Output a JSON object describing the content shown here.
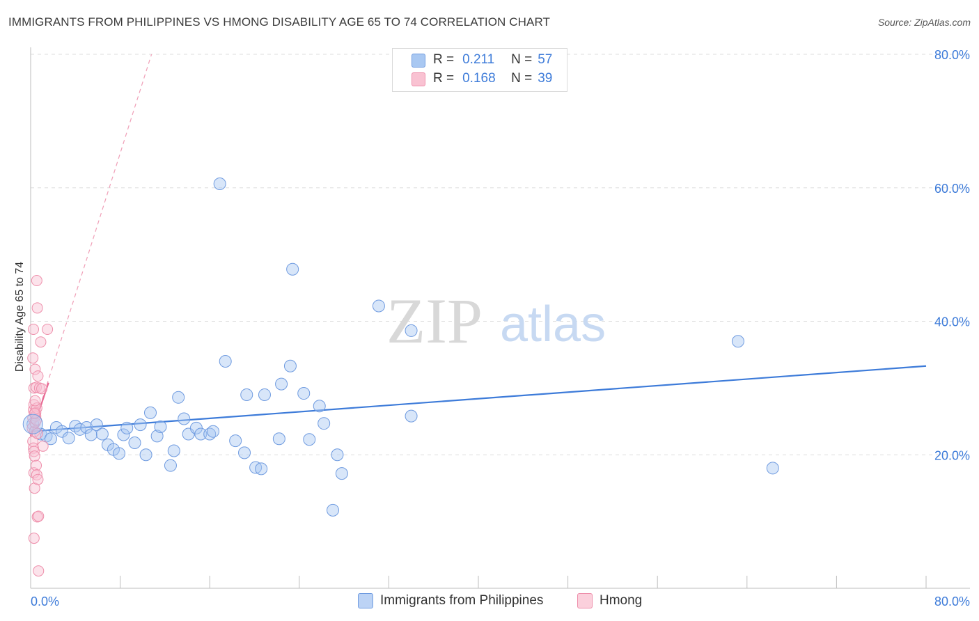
{
  "title": "IMMIGRANTS FROM PHILIPPINES VS HMONG DISABILITY AGE 65 TO 74 CORRELATION CHART",
  "source": "Source: ZipAtlas.com",
  "watermark": {
    "zip": "ZIP",
    "atlas": "atlas"
  },
  "legend": {
    "r_label": "R =",
    "n_label": "N =",
    "rows": [
      {
        "r": "0.211",
        "n": "57",
        "color": "#a9c8f2",
        "border": "#6f9be0"
      },
      {
        "r": "0.168",
        "n": "39",
        "color": "#f9c2d2",
        "border": "#ee8fab"
      }
    ]
  },
  "bottom_legend": [
    {
      "label": "Immigrants from Philippines",
      "color": "#bcd3f5",
      "border": "#6f9be0"
    },
    {
      "label": "Hmong",
      "color": "#fbd0dc",
      "border": "#ee8fab"
    }
  ],
  "chart_data": {
    "type": "scatter",
    "title": "IMMIGRANTS FROM PHILIPPINES VS HMONG DISABILITY AGE 65 TO 74 CORRELATION CHART",
    "xlabel": "",
    "ylabel": "Disability Age 65 to 74",
    "xlim": [
      0,
      80
    ],
    "ylim": [
      0,
      80
    ],
    "x_tick_labels": [
      "0.0%",
      "80.0%"
    ],
    "y_tick_labels": [
      "20.0%",
      "40.0%",
      "60.0%",
      "80.0%"
    ],
    "y_ticks": [
      20,
      40,
      60,
      80
    ],
    "grid": true,
    "legend_position": "top-center",
    "colors": {
      "philippines": "#3d7bd9",
      "hmong": "#e86a94"
    },
    "series": [
      {
        "name": "Immigrants from Philippines",
        "points": [
          [
            0.2,
            24.6
          ],
          [
            0.9,
            23.1
          ],
          [
            1.4,
            22.8
          ],
          [
            1.8,
            22.4
          ],
          [
            2.3,
            24.1
          ],
          [
            2.8,
            23.5
          ],
          [
            3.4,
            22.5
          ],
          [
            4.0,
            24.3
          ],
          [
            4.4,
            23.8
          ],
          [
            5.0,
            24.1
          ],
          [
            5.4,
            23.0
          ],
          [
            5.9,
            24.5
          ],
          [
            6.4,
            23.1
          ],
          [
            6.9,
            21.5
          ],
          [
            7.4,
            20.8
          ],
          [
            7.9,
            20.2
          ],
          [
            8.3,
            23.0
          ],
          [
            8.6,
            24.0
          ],
          [
            9.3,
            21.8
          ],
          [
            9.8,
            24.5
          ],
          [
            10.3,
            20.0
          ],
          [
            10.7,
            26.3
          ],
          [
            11.3,
            22.8
          ],
          [
            11.6,
            24.2
          ],
          [
            12.5,
            18.4
          ],
          [
            12.8,
            20.6
          ],
          [
            13.2,
            28.6
          ],
          [
            13.7,
            25.4
          ],
          [
            14.1,
            23.1
          ],
          [
            14.8,
            24.0
          ],
          [
            15.2,
            23.1
          ],
          [
            16.0,
            23.1
          ],
          [
            16.3,
            23.5
          ],
          [
            16.9,
            60.6
          ],
          [
            17.4,
            34.0
          ],
          [
            18.3,
            22.1
          ],
          [
            19.1,
            20.3
          ],
          [
            19.3,
            29.0
          ],
          [
            20.1,
            18.1
          ],
          [
            20.6,
            17.9
          ],
          [
            20.9,
            29.0
          ],
          [
            22.2,
            22.4
          ],
          [
            22.4,
            30.6
          ],
          [
            23.2,
            33.3
          ],
          [
            23.4,
            47.8
          ],
          [
            24.4,
            29.2
          ],
          [
            24.9,
            22.3
          ],
          [
            25.8,
            27.3
          ],
          [
            26.2,
            24.7
          ],
          [
            27.0,
            11.7
          ],
          [
            27.4,
            20.0
          ],
          [
            27.8,
            17.2
          ],
          [
            31.1,
            42.3
          ],
          [
            34.0,
            38.6
          ],
          [
            34.0,
            25.8
          ],
          [
            63.2,
            37.0
          ],
          [
            66.3,
            18.0
          ]
        ]
      },
      {
        "name": "Hmong",
        "points": [
          [
            0.15,
            24.0
          ],
          [
            0.2,
            25.5
          ],
          [
            0.25,
            26.7
          ],
          [
            0.3,
            27.5
          ],
          [
            0.3,
            30.0
          ],
          [
            0.35,
            23.5
          ],
          [
            0.2,
            22.0
          ],
          [
            0.25,
            21.0
          ],
          [
            0.3,
            20.5
          ],
          [
            0.35,
            19.8
          ],
          [
            0.2,
            34.5
          ],
          [
            0.25,
            38.8
          ],
          [
            0.4,
            32.8
          ],
          [
            0.3,
            17.3
          ],
          [
            0.35,
            15.0
          ],
          [
            0.3,
            7.5
          ],
          [
            0.45,
            26.3
          ],
          [
            0.45,
            25.8
          ],
          [
            0.4,
            24.8
          ],
          [
            0.55,
            46.1
          ],
          [
            0.6,
            42.0
          ],
          [
            0.65,
            31.8
          ],
          [
            0.5,
            30.1
          ],
          [
            0.55,
            27.0
          ],
          [
            0.5,
            25.2
          ],
          [
            0.6,
            23.2
          ],
          [
            0.5,
            18.4
          ],
          [
            0.55,
            17.0
          ],
          [
            0.65,
            16.3
          ],
          [
            0.6,
            10.7
          ],
          [
            0.7,
            10.8
          ],
          [
            0.7,
            2.6
          ],
          [
            0.8,
            30.0
          ],
          [
            0.9,
            36.9
          ],
          [
            1.0,
            29.9
          ],
          [
            1.1,
            21.3
          ],
          [
            1.5,
            38.8
          ],
          [
            0.4,
            28.1
          ],
          [
            0.35,
            26.2
          ]
        ]
      }
    ],
    "trend_lines": [
      {
        "series": "Immigrants from Philippines",
        "from": [
          0,
          23.5
        ],
        "to": [
          80,
          33.3
        ]
      },
      {
        "series": "Hmong",
        "from": [
          0,
          22.8
        ],
        "to": [
          1.6,
          30.8
        ]
      },
      {
        "series": "Hmong (extended)",
        "from": [
          0,
          22.8
        ],
        "to": [
          10.8,
          80
        ]
      }
    ]
  }
}
